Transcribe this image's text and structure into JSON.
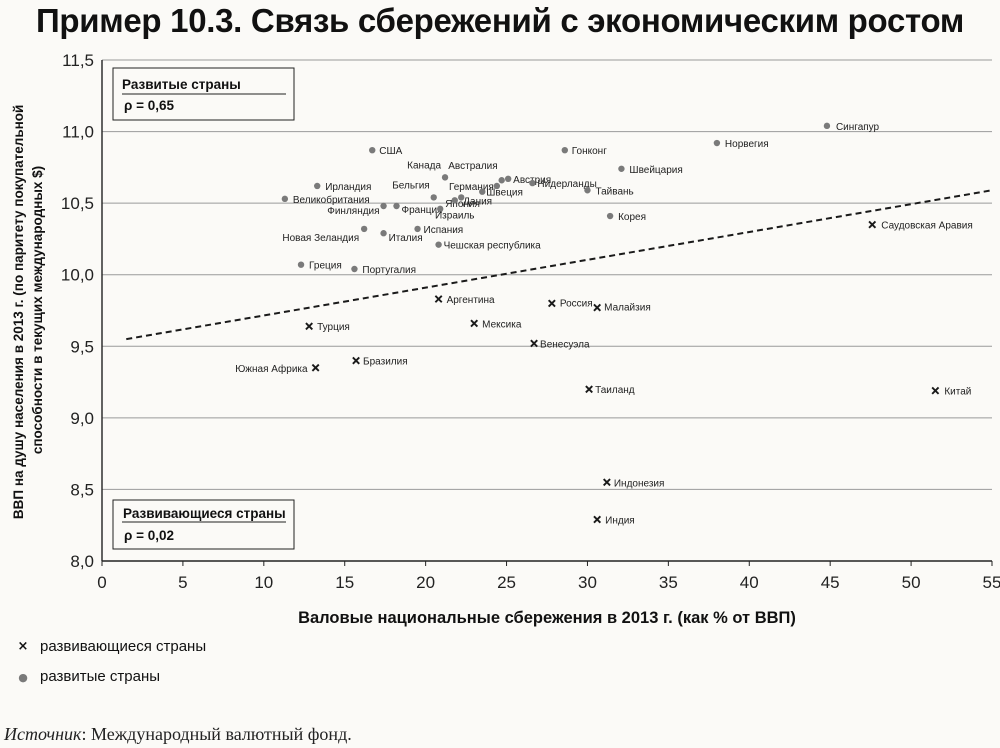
{
  "page": {
    "title": "Пример 10.3. Связь сбережений с экономическим ростом",
    "source_label": "Источник",
    "source_text": ": Международный валютный фонд."
  },
  "colors": {
    "background": "#fbfaf7",
    "grid": "#9a9a9a",
    "developed_marker": "#7a7a7a",
    "developing_marker": "#1a1a1a",
    "trend": "#1a1a1a"
  },
  "chart_data": {
    "type": "scatter",
    "xlabel": "Валовые национальные сбережения в 2013 г. (как % от ВВП)",
    "ylabel_lines": [
      "ВВП на душу населения в 2013 г. (по паритету покупательной",
      "способности в текущих международных $)"
    ],
    "xlim": [
      0,
      55
    ],
    "ylim": [
      8.0,
      11.5
    ],
    "x_ticks": [
      "0",
      "5",
      "10",
      "15",
      "20",
      "25",
      "30",
      "35",
      "40",
      "45",
      "50",
      "55"
    ],
    "y_ticks": [
      "8,0",
      "8,5",
      "9,0",
      "9,5",
      "10,0",
      "10,5",
      "11,0",
      "11,5"
    ],
    "grid": "horizontal",
    "legend_position": "bottom-left",
    "legend": [
      {
        "symbol": "×",
        "label": "развивающиеся страны"
      },
      {
        "symbol": "●",
        "label": "развитые страны"
      }
    ],
    "annotations": [
      {
        "name": "Развитые страны",
        "rho": "ρ = 0,65",
        "position": "top-left"
      },
      {
        "name": "Развивающиеся страны",
        "rho": "ρ = 0,02",
        "position": "bottom-left"
      }
    ],
    "trend_line": {
      "style": "dashed",
      "x": [
        1.5,
        55
      ],
      "y": [
        9.55,
        10.59
      ]
    },
    "series": [
      {
        "name": "развитые страны",
        "marker": "dot",
        "points": [
          {
            "label": "Сингапур",
            "x": 44.8,
            "y": 11.04
          },
          {
            "label": "Норвегия",
            "x": 38.0,
            "y": 10.92
          },
          {
            "label": "США",
            "x": 16.7,
            "y": 10.87
          },
          {
            "label": "Гонконг",
            "x": 28.6,
            "y": 10.87
          },
          {
            "label": "Швейцария",
            "x": 32.1,
            "y": 10.74
          },
          {
            "label": "Канада",
            "x": 21.2,
            "y": 10.68
          },
          {
            "label": "Австралия",
            "x": 24.7,
            "y": 10.66
          },
          {
            "label": "Австрия",
            "x": 25.1,
            "y": 10.67
          },
          {
            "label": "Германия",
            "x": 24.4,
            "y": 10.62
          },
          {
            "label": "Нидерланды",
            "x": 26.6,
            "y": 10.64
          },
          {
            "label": "Ирландия",
            "x": 13.3,
            "y": 10.62
          },
          {
            "label": "Тайвань",
            "x": 30.0,
            "y": 10.59
          },
          {
            "label": "Бельгия",
            "x": 20.5,
            "y": 10.54
          },
          {
            "label": "Швеция",
            "x": 23.5,
            "y": 10.58
          },
          {
            "label": "Великобритания",
            "x": 11.3,
            "y": 10.53
          },
          {
            "label": "Дания",
            "x": 22.2,
            "y": 10.54
          },
          {
            "label": "Финляндия",
            "x": 17.4,
            "y": 10.48
          },
          {
            "label": "Франция",
            "x": 18.2,
            "y": 10.48
          },
          {
            "label": "Япония",
            "x": 20.9,
            "y": 10.46
          },
          {
            "label": "Корея",
            "x": 31.4,
            "y": 10.41
          },
          {
            "label": "Израиль",
            "x": 21.8,
            "y": 10.52
          },
          {
            "label": "Новая Зеландия",
            "x": 16.2,
            "y": 10.32
          },
          {
            "label": "Испания",
            "x": 19.5,
            "y": 10.32
          },
          {
            "label": "Италия",
            "x": 17.4,
            "y": 10.29
          },
          {
            "label": "Чешская республика",
            "x": 20.8,
            "y": 10.21
          },
          {
            "label": "Греция",
            "x": 12.3,
            "y": 10.07
          },
          {
            "label": "Португалия",
            "x": 15.6,
            "y": 10.04
          }
        ]
      },
      {
        "name": "развивающиеся страны",
        "marker": "cross",
        "points": [
          {
            "label": "Саудовская Аравия",
            "x": 47.6,
            "y": 10.35
          },
          {
            "label": "Аргентина",
            "x": 20.8,
            "y": 9.83
          },
          {
            "label": "Россия",
            "x": 27.8,
            "y": 9.8
          },
          {
            "label": "Малайзия",
            "x": 30.6,
            "y": 9.77
          },
          {
            "label": "Турция",
            "x": 12.8,
            "y": 9.64
          },
          {
            "label": "Мексика",
            "x": 23.0,
            "y": 9.66
          },
          {
            "label": "Венесуэла",
            "x": 26.7,
            "y": 9.52
          },
          {
            "label": "Бразилия",
            "x": 15.7,
            "y": 9.4
          },
          {
            "label": "Южная Африка",
            "x": 13.2,
            "y": 9.35
          },
          {
            "label": "Таиланд",
            "x": 30.1,
            "y": 9.2
          },
          {
            "label": "Китай",
            "x": 51.5,
            "y": 9.19
          },
          {
            "label": "Индонезия",
            "x": 31.2,
            "y": 8.55
          },
          {
            "label": "Индия",
            "x": 30.6,
            "y": 8.29
          }
        ]
      }
    ]
  }
}
